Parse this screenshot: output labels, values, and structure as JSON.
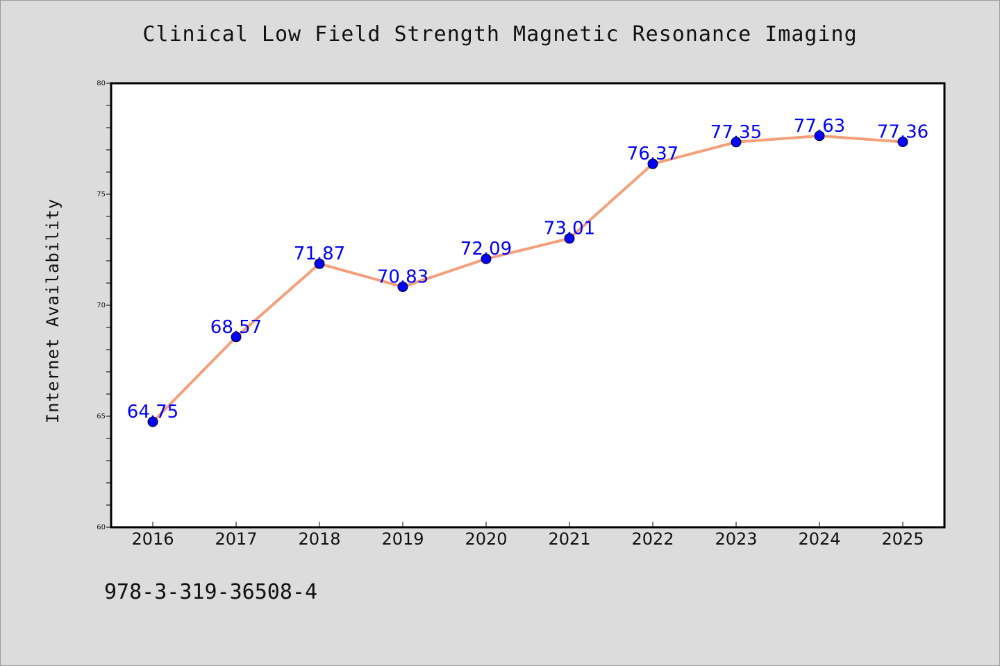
{
  "chart_data": {
    "type": "line",
    "title": "Clinical Low Field Strength Magnetic Resonance Imaging",
    "xlabel": "",
    "ylabel": "Internet Availability",
    "categories": [
      "2016",
      "2017",
      "2018",
      "2019",
      "2020",
      "2021",
      "2022",
      "2023",
      "2024",
      "2025"
    ],
    "series": [
      {
        "values": [
          64.75,
          68.57,
          71.87,
          70.83,
          72.09,
          73.01,
          76.37,
          77.35,
          77.63,
          77.36
        ],
        "labels": [
          "64.75",
          "68.57",
          "71.87",
          "70.83",
          "72.09",
          "73.01",
          "76.37",
          "77.35",
          "77.63",
          "77.36"
        ]
      }
    ],
    "ylim": [
      60,
      80
    ],
    "yticks": [
      "60",
      "65",
      "70",
      "75",
      "80"
    ],
    "grid": false,
    "legend": "none",
    "colors": {
      "line": "#f4a07c",
      "marker": "#0000ff",
      "label": "#0000ff",
      "background": "#dcdcdc",
      "plot_background": "#ffffff"
    }
  },
  "footnote": "978-3-319-36508-4"
}
